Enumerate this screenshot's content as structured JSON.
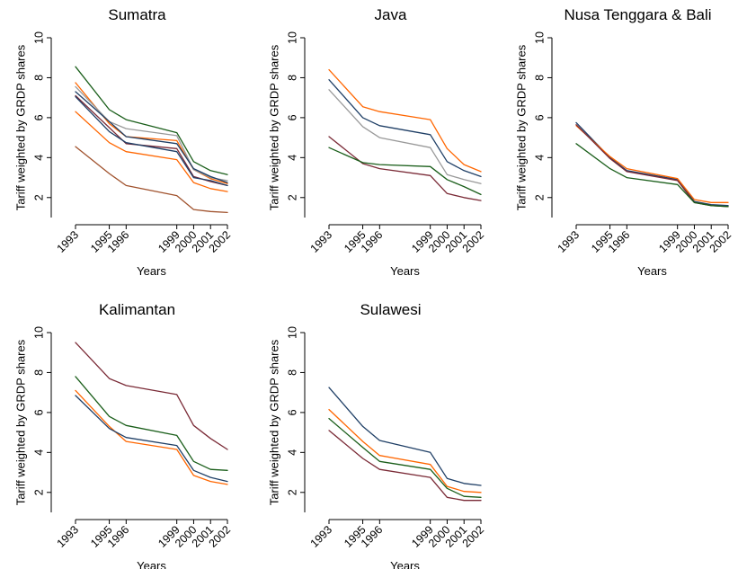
{
  "chart_data": [
    {
      "type": "line",
      "title": "Sumatra",
      "xlabel": "Years",
      "ylabel": "Tariff weighted by GRDP shares",
      "x": [
        1993,
        1995,
        1996,
        1999,
        2000,
        2001,
        2002
      ],
      "xticks": [
        "1993",
        "1995",
        "1996",
        "1999",
        "2000",
        "2001",
        "2002"
      ],
      "yticks": [
        "2",
        "4",
        "6",
        "8",
        "10"
      ],
      "ylim": [
        1,
        10
      ],
      "grid": false,
      "series": [
        {
          "color": "#1a5e1a",
          "values": [
            8.55,
            6.4,
            5.9,
            5.25,
            3.8,
            3.35,
            3.15
          ]
        },
        {
          "color": "#ff6600",
          "values": [
            7.75,
            5.7,
            5.05,
            4.85,
            3.4,
            2.95,
            2.7
          ]
        },
        {
          "color": "#999999",
          "values": [
            7.55,
            5.8,
            5.45,
            5.1,
            3.4,
            3.0,
            2.85
          ]
        },
        {
          "color": "#1f3f66",
          "values": [
            7.3,
            5.8,
            5.05,
            4.7,
            3.45,
            3.05,
            2.75
          ]
        },
        {
          "color": "#7a2a36",
          "values": [
            7.1,
            5.5,
            4.7,
            4.45,
            3.05,
            2.8,
            2.6
          ]
        },
        {
          "color": "#1f3f66",
          "values": [
            7.05,
            5.3,
            4.75,
            4.3,
            3.0,
            2.85,
            2.6
          ]
        },
        {
          "color": "#ff6600",
          "values": [
            6.3,
            4.75,
            4.3,
            3.9,
            2.75,
            2.45,
            2.3
          ]
        },
        {
          "color": "#a0522d",
          "values": [
            4.55,
            3.2,
            2.6,
            2.1,
            1.4,
            1.3,
            1.25
          ]
        }
      ]
    },
    {
      "type": "line",
      "title": "Java",
      "xlabel": "Years",
      "ylabel": "Tariff weighted by GRDP shares",
      "x": [
        1993,
        1995,
        1996,
        1999,
        2000,
        2001,
        2002
      ],
      "xticks": [
        "1993",
        "1995",
        "1996",
        "1999",
        "2000",
        "2001",
        "2002"
      ],
      "yticks": [
        "2",
        "4",
        "6",
        "8",
        "10"
      ],
      "ylim": [
        1,
        10
      ],
      "grid": false,
      "series": [
        {
          "color": "#ff6600",
          "values": [
            8.4,
            6.55,
            6.3,
            5.9,
            4.45,
            3.65,
            3.3
          ]
        },
        {
          "color": "#1f3f66",
          "values": [
            7.9,
            6.0,
            5.6,
            5.15,
            3.8,
            3.35,
            3.05
          ]
        },
        {
          "color": "#999999",
          "values": [
            7.4,
            5.55,
            5.0,
            4.5,
            3.15,
            2.9,
            2.7
          ]
        },
        {
          "color": "#7a2a36",
          "values": [
            5.05,
            3.7,
            3.45,
            3.1,
            2.2,
            2.0,
            1.85
          ]
        },
        {
          "color": "#1a5e1a",
          "values": [
            4.5,
            3.75,
            3.65,
            3.55,
            2.9,
            2.55,
            2.15
          ]
        }
      ]
    },
    {
      "type": "line",
      "title": "Nusa Tenggara & Bali",
      "xlabel": "Years",
      "ylabel": "Tariff weighted by GRDP shares",
      "x": [
        1993,
        1995,
        1996,
        1999,
        2000,
        2001,
        2002
      ],
      "xticks": [
        "1993",
        "1995",
        "1996",
        "1999",
        "2000",
        "2001",
        "2002"
      ],
      "yticks": [
        "2",
        "4",
        "6",
        "8",
        "10"
      ],
      "ylim": [
        1,
        10
      ],
      "grid": false,
      "series": [
        {
          "color": "#1f3f66",
          "values": [
            5.75,
            4.0,
            3.35,
            2.9,
            1.8,
            1.65,
            1.6
          ]
        },
        {
          "color": "#ff6600",
          "values": [
            5.6,
            4.05,
            3.45,
            2.95,
            1.9,
            1.75,
            1.75
          ]
        },
        {
          "color": "#7a2a36",
          "values": [
            5.65,
            3.95,
            3.3,
            2.85,
            1.75,
            1.6,
            1.55
          ]
        },
        {
          "color": "#1a5e1a",
          "values": [
            4.7,
            3.45,
            3.0,
            2.65,
            1.75,
            1.6,
            1.55
          ]
        }
      ]
    },
    {
      "type": "line",
      "title": "Kalimantan",
      "xlabel": "Years",
      "ylabel": "Tariff weighted by GRDP shares",
      "x": [
        1993,
        1995,
        1996,
        1999,
        2000,
        2001,
        2002
      ],
      "xticks": [
        "1993",
        "1995",
        "1996",
        "1999",
        "2000",
        "2001",
        "2002"
      ],
      "yticks": [
        "2",
        "4",
        "6",
        "8",
        "10"
      ],
      "ylim": [
        1,
        10
      ],
      "grid": false,
      "series": [
        {
          "color": "#7a2a36",
          "values": [
            9.5,
            7.7,
            7.35,
            6.9,
            5.35,
            4.7,
            4.15
          ]
        },
        {
          "color": "#1a5e1a",
          "values": [
            7.8,
            5.8,
            5.35,
            4.85,
            3.55,
            3.15,
            3.1
          ]
        },
        {
          "color": "#ff6600",
          "values": [
            7.1,
            5.3,
            4.55,
            4.15,
            2.85,
            2.55,
            2.4
          ]
        },
        {
          "color": "#1f3f66",
          "values": [
            6.85,
            5.2,
            4.75,
            4.35,
            3.1,
            2.75,
            2.55
          ]
        }
      ]
    },
    {
      "type": "line",
      "title": "Sulawesi",
      "xlabel": "Years",
      "ylabel": "Tariff weighted by GRDP shares",
      "x": [
        1993,
        1995,
        1996,
        1999,
        2000,
        2001,
        2002
      ],
      "xticks": [
        "1993",
        "1995",
        "1996",
        "1999",
        "2000",
        "2001",
        "2002"
      ],
      "yticks": [
        "2",
        "4",
        "6",
        "8",
        "10"
      ],
      "ylim": [
        1,
        10
      ],
      "grid": false,
      "series": [
        {
          "color": "#1f3f66",
          "values": [
            7.25,
            5.3,
            4.6,
            4.0,
            2.7,
            2.45,
            2.35
          ]
        },
        {
          "color": "#ff6600",
          "values": [
            6.15,
            4.55,
            3.85,
            3.4,
            2.3,
            2.05,
            2.0
          ]
        },
        {
          "color": "#1a5e1a",
          "values": [
            5.7,
            4.25,
            3.55,
            3.15,
            2.2,
            1.8,
            1.75
          ]
        },
        {
          "color": "#7a2a36",
          "values": [
            5.1,
            3.7,
            3.15,
            2.75,
            1.75,
            1.6,
            1.6
          ]
        }
      ]
    }
  ]
}
